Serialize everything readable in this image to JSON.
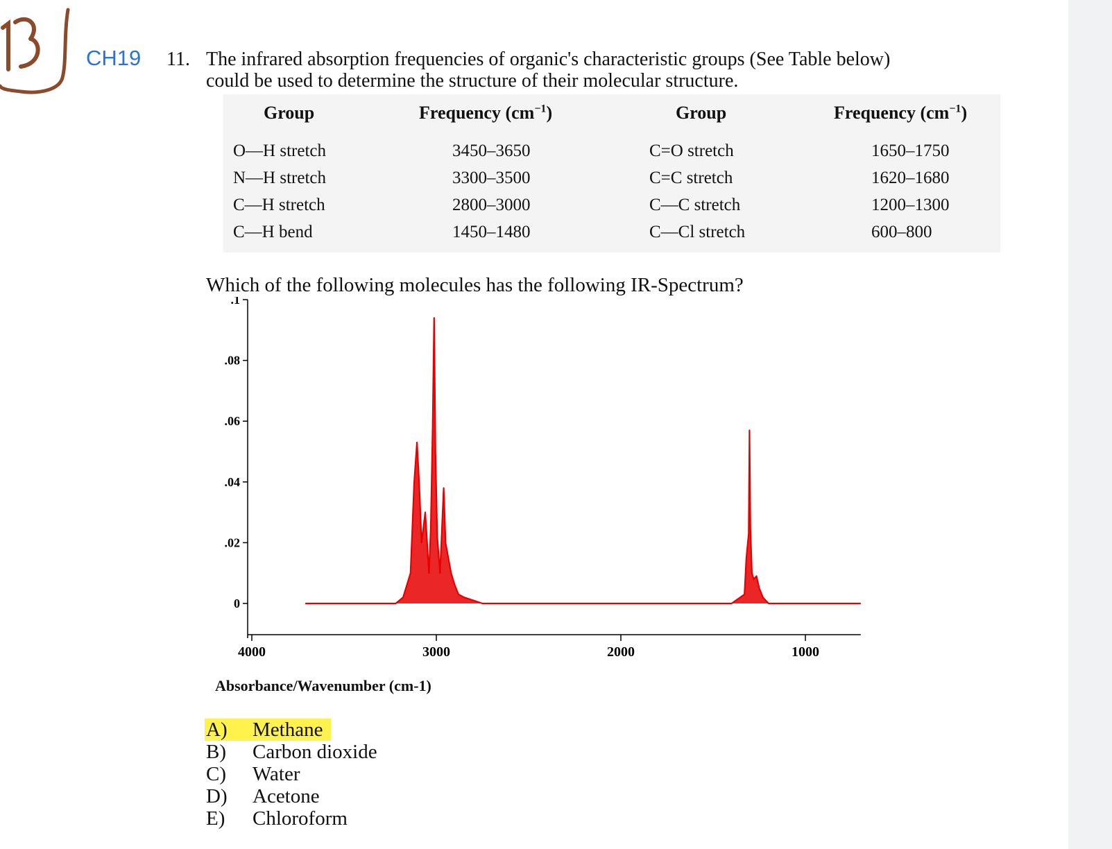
{
  "header": {
    "chapter": "CH19",
    "question_number": "11.",
    "question_line1": "The infrared absorption frequencies of organic's characteristic groups (See Table below)",
    "question_line2": "could be used to determine the structure of their molecular structure."
  },
  "table": {
    "headers": [
      "Group",
      "Frequency (cm",
      "Group",
      "Frequency (cm"
    ],
    "header_superscript": "−1",
    "header_close": ")",
    "rows": [
      [
        "O—H stretch",
        "3450–3650",
        "C=O stretch",
        "1650–1750"
      ],
      [
        "N—H stretch",
        "3300–3500",
        "C=C stretch",
        "1620–1680"
      ],
      [
        "C—H stretch",
        "2800–3000",
        "C—C stretch",
        "1200–1300"
      ],
      [
        "C—H bend",
        "1450–1480",
        "C—Cl stretch",
        "600–800"
      ]
    ]
  },
  "prompt": "Which of the following molecules has the following IR-Spectrum?",
  "chart_data": {
    "type": "line",
    "title": "",
    "xlabel": "Absorbance/Wavenumber (cm-1)",
    "ylabel": "",
    "xlim": [
      4000,
      700
    ],
    "ylim": [
      -0.01,
      0.1
    ],
    "x_ticks": [
      4000,
      3000,
      2000,
      1000
    ],
    "x_tick_labels": [
      "4000",
      "3000",
      "2000",
      "1000"
    ],
    "y_ticks": [
      0.1,
      0.08,
      0.06,
      0.04,
      0.02,
      0
    ],
    "y_tick_labels": [
      ".1",
      ".08",
      ".06",
      ".04",
      ".02",
      "0"
    ],
    "grid": false,
    "line_color": "#e60000",
    "series": [
      {
        "x": [
          3710,
          3220,
          3180,
          3140,
          3120,
          3105,
          3095,
          3090,
          3080,
          3060,
          3050,
          3040,
          3030,
          3020,
          3012,
          3005,
          2995,
          2980,
          2960,
          2950,
          2935,
          2920,
          2900,
          2880,
          2850,
          2800,
          2750,
          1400,
          1330,
          1320,
          1312,
          1307,
          1303,
          1298,
          1290,
          1280,
          1265,
          1250,
          1230,
          1200,
          700
        ],
        "y": [
          0,
          0,
          0.002,
          0.01,
          0.04,
          0.053,
          0.042,
          0.035,
          0.02,
          0.03,
          0.02,
          0.01,
          0.025,
          0.058,
          0.094,
          0.05,
          0.022,
          0.01,
          0.038,
          0.02,
          0.015,
          0.01,
          0.006,
          0.003,
          0.002,
          0.001,
          0,
          0,
          0.003,
          0.015,
          0.02,
          0.023,
          0.057,
          0.025,
          0.01,
          0.008,
          0.009,
          0.005,
          0.002,
          0,
          0
        ]
      }
    ]
  },
  "choices": [
    {
      "letter": "A)",
      "text": "Methane",
      "highlighted": true
    },
    {
      "letter": "B)",
      "text": "Carbon dioxide",
      "highlighted": false
    },
    {
      "letter": "C)",
      "text": "Water",
      "highlighted": false
    },
    {
      "letter": "D)",
      "text": "Acetone",
      "highlighted": false
    },
    {
      "letter": "E)",
      "text": "Chloroform",
      "highlighted": false
    }
  ],
  "colors": {
    "accent_blue": "#2a73d6",
    "highlight": "#fff24d",
    "ink_brown": "#8b4a2a"
  }
}
